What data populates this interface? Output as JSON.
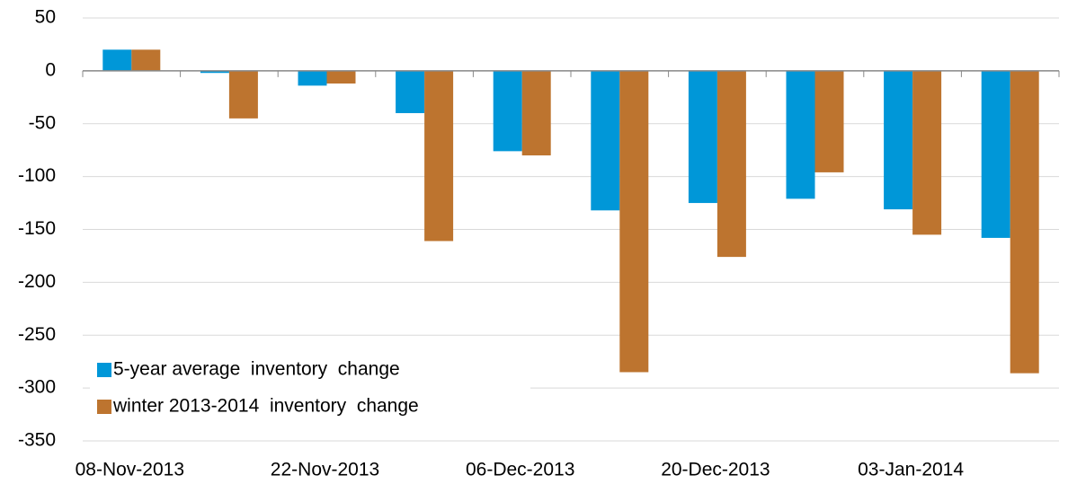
{
  "chart_data": {
    "type": "bar",
    "categories": [
      "08-Nov-2013",
      null,
      "22-Nov-2013",
      null,
      "06-Dec-2013",
      null,
      "20-Dec-2013",
      null,
      "03-Jan-2014",
      null
    ],
    "series": [
      {
        "name": "5-year average  inventory  change",
        "color": "#0097d8",
        "values": [
          20,
          -2,
          -14,
          -40,
          -76,
          -132,
          -125,
          -121,
          -131,
          -158
        ]
      },
      {
        "name": "winter 2013-2014  inventory  change",
        "color": "#bd742f",
        "values": [
          20,
          -45,
          -12,
          -161,
          -80,
          -285,
          -176,
          -96,
          -155,
          -286
        ]
      }
    ],
    "ylim": [
      -350,
      50
    ],
    "yticks": [
      50,
      0,
      -50,
      -100,
      -150,
      -200,
      -250,
      -300,
      -350
    ],
    "grid": true,
    "legend": "lower left"
  }
}
